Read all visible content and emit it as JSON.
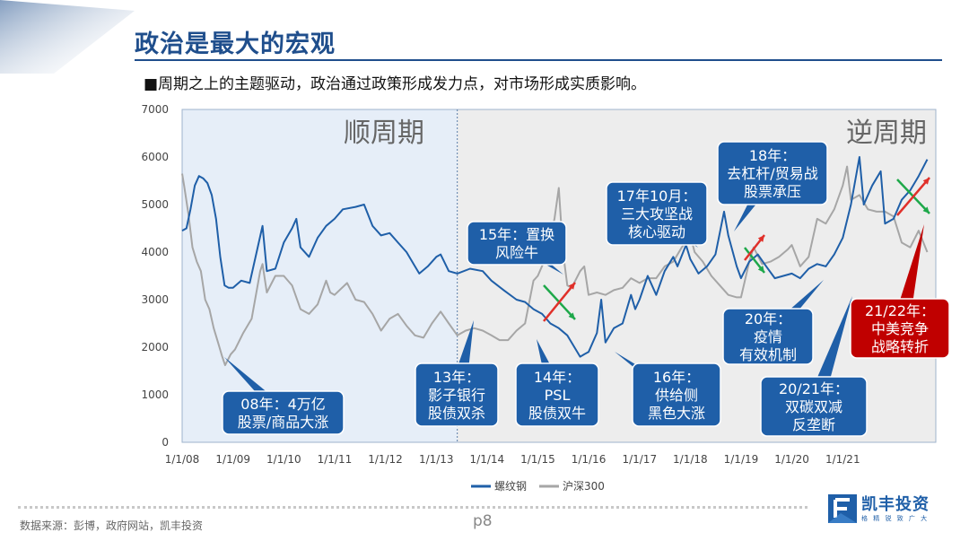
{
  "page": {
    "title": "政治是最大的宏观",
    "subtitle": "■周期之上的主题驱动，政治通过政策形成发力点，对市场形成实质影响。",
    "source": "数据来源：彭博，政府网站，凯丰投资",
    "page_number": "p8",
    "logo_name": "凯丰投资",
    "logo_slogan": "格 精 锐 致 广 大"
  },
  "colors": {
    "brand": "#1f4e8c",
    "series1": "#1f5fa8",
    "series2": "#a6a6a6",
    "alert": "#c00000",
    "callout": "#1f5fa8"
  },
  "chart_data": {
    "type": "line",
    "ylim": [
      0,
      7000
    ],
    "xlim": [
      "2008-01-01",
      "2022-11-01"
    ],
    "yticks": [
      "0",
      "1000",
      "2000",
      "3000",
      "4000",
      "5000",
      "6000",
      "7000"
    ],
    "xticks": [
      "1/1/08",
      "1/1/09",
      "1/1/10",
      "1/1/11",
      "1/1/12",
      "1/1/13",
      "1/1/14",
      "1/1/15",
      "1/1/16",
      "1/1/17",
      "1/1/18",
      "1/1/19",
      "1/1/20",
      "1/1/21"
    ],
    "regions": [
      {
        "label": "顺周期",
        "from": "2008-01-01",
        "to": "2013-06-01"
      },
      {
        "label": "逆周期",
        "from": "2013-06-01",
        "to": "2022-11-01"
      }
    ],
    "legend": "bottom",
    "series": [
      {
        "name": "螺纹钢",
        "points": [
          [
            "2008-01-01",
            4450
          ],
          [
            "2008-02-01",
            4500
          ],
          [
            "2008-03-01",
            4900
          ],
          [
            "2008-04-01",
            5400
          ],
          [
            "2008-05-01",
            5600
          ],
          [
            "2008-06-01",
            5550
          ],
          [
            "2008-07-01",
            5450
          ],
          [
            "2008-08-01",
            5200
          ],
          [
            "2008-09-01",
            4700
          ],
          [
            "2008-10-01",
            3900
          ],
          [
            "2008-11-01",
            3300
          ],
          [
            "2008-12-01",
            3250
          ],
          [
            "2009-01-01",
            3250
          ],
          [
            "2009-03-01",
            3400
          ],
          [
            "2009-05-01",
            3350
          ],
          [
            "2009-07-01",
            4150
          ],
          [
            "2009-08-01",
            4550
          ],
          [
            "2009-09-01",
            3600
          ],
          [
            "2009-11-01",
            3650
          ],
          [
            "2010-01-01",
            4200
          ],
          [
            "2010-03-01",
            4500
          ],
          [
            "2010-04-01",
            4700
          ],
          [
            "2010-05-01",
            4100
          ],
          [
            "2010-07-01",
            3900
          ],
          [
            "2010-09-01",
            4300
          ],
          [
            "2010-11-01",
            4550
          ],
          [
            "2011-01-01",
            4700
          ],
          [
            "2011-03-01",
            4900
          ],
          [
            "2011-06-01",
            4950
          ],
          [
            "2011-08-01",
            5000
          ],
          [
            "2011-10-01",
            4550
          ],
          [
            "2011-12-01",
            4350
          ],
          [
            "2012-02-01",
            4400
          ],
          [
            "2012-04-01",
            4200
          ],
          [
            "2012-06-01",
            4000
          ],
          [
            "2012-08-01",
            3700
          ],
          [
            "2012-09-01",
            3550
          ],
          [
            "2012-11-01",
            3700
          ],
          [
            "2013-01-01",
            3900
          ],
          [
            "2013-02-01",
            3950
          ],
          [
            "2013-04-01",
            3600
          ],
          [
            "2013-06-01",
            3550
          ],
          [
            "2013-09-01",
            3650
          ],
          [
            "2013-12-01",
            3600
          ],
          [
            "2014-02-01",
            3400
          ],
          [
            "2014-05-01",
            3200
          ],
          [
            "2014-08-01",
            3000
          ],
          [
            "2014-10-01",
            2950
          ],
          [
            "2014-12-01",
            2800
          ],
          [
            "2015-02-01",
            2700
          ],
          [
            "2015-04-01",
            2500
          ],
          [
            "2015-06-01",
            2400
          ],
          [
            "2015-08-01",
            2250
          ],
          [
            "2015-10-01",
            1950
          ],
          [
            "2015-11-01",
            1800
          ],
          [
            "2015-12-01",
            1850
          ],
          [
            "2016-01-01",
            1900
          ],
          [
            "2016-03-01",
            2300
          ],
          [
            "2016-04-01",
            3000
          ],
          [
            "2016-05-01",
            2100
          ],
          [
            "2016-07-01",
            2400
          ],
          [
            "2016-09-01",
            2500
          ],
          [
            "2016-11-01",
            3100
          ],
          [
            "2016-12-01",
            2800
          ],
          [
            "2017-01-01",
            3000
          ],
          [
            "2017-03-01",
            3500
          ],
          [
            "2017-05-01",
            3100
          ],
          [
            "2017-07-01",
            3600
          ],
          [
            "2017-09-01",
            3900
          ],
          [
            "2017-10-01",
            3700
          ],
          [
            "2017-12-01",
            4150
          ],
          [
            "2018-01-01",
            3850
          ],
          [
            "2018-03-01",
            3550
          ],
          [
            "2018-05-01",
            3700
          ],
          [
            "2018-07-01",
            3950
          ],
          [
            "2018-08-01",
            4400
          ],
          [
            "2018-09-01",
            4850
          ],
          [
            "2018-10-01",
            4350
          ],
          [
            "2018-12-01",
            3700
          ],
          [
            "2019-01-01",
            3450
          ],
          [
            "2019-03-01",
            3800
          ],
          [
            "2019-05-01",
            3950
          ],
          [
            "2019-07-01",
            3700
          ],
          [
            "2019-09-01",
            3450
          ],
          [
            "2019-11-01",
            3500
          ],
          [
            "2020-01-01",
            3550
          ],
          [
            "2020-03-01",
            3450
          ],
          [
            "2020-05-01",
            3650
          ],
          [
            "2020-07-01",
            3750
          ],
          [
            "2020-09-01",
            3700
          ],
          [
            "2020-11-01",
            3950
          ],
          [
            "2021-01-01",
            4300
          ],
          [
            "2021-03-01",
            5000
          ],
          [
            "2021-05-01",
            6000
          ],
          [
            "2021-06-01",
            5000
          ],
          [
            "2021-08-01",
            5400
          ],
          [
            "2021-10-01",
            5700
          ],
          [
            "2021-11-01",
            4600
          ],
          [
            "2022-01-01",
            4700
          ],
          [
            "2022-03-01",
            5100
          ],
          [
            "2022-05-01",
            5300
          ],
          [
            "2022-07-01",
            5600
          ],
          [
            "2022-09-01",
            5950
          ]
        ]
      },
      {
        "name": "沪深300",
        "points": [
          [
            "2008-01-01",
            5650
          ],
          [
            "2008-01-15",
            5400
          ],
          [
            "2008-02-15",
            4800
          ],
          [
            "2008-03-15",
            4100
          ],
          [
            "2008-04-15",
            3800
          ],
          [
            "2008-05-15",
            3600
          ],
          [
            "2008-06-15",
            3000
          ],
          [
            "2008-07-15",
            2800
          ],
          [
            "2008-08-15",
            2400
          ],
          [
            "2008-09-15",
            2100
          ],
          [
            "2008-10-15",
            1800
          ],
          [
            "2008-11-05",
            1620
          ],
          [
            "2008-12-15",
            1850
          ],
          [
            "2009-01-15",
            1950
          ],
          [
            "2009-03-15",
            2300
          ],
          [
            "2009-05-15",
            2600
          ],
          [
            "2009-07-15",
            3600
          ],
          [
            "2009-08-01",
            3750
          ],
          [
            "2009-09-01",
            3150
          ],
          [
            "2009-11-01",
            3500
          ],
          [
            "2010-01-01",
            3500
          ],
          [
            "2010-03-01",
            3300
          ],
          [
            "2010-05-01",
            2800
          ],
          [
            "2010-07-01",
            2700
          ],
          [
            "2010-09-01",
            2900
          ],
          [
            "2010-11-01",
            3400
          ],
          [
            "2010-12-01",
            3150
          ],
          [
            "2011-01-01",
            3100
          ],
          [
            "2011-04-01",
            3350
          ],
          [
            "2011-06-01",
            3000
          ],
          [
            "2011-08-01",
            2950
          ],
          [
            "2011-10-01",
            2700
          ],
          [
            "2011-12-01",
            2350
          ],
          [
            "2012-02-01",
            2600
          ],
          [
            "2012-04-01",
            2700
          ],
          [
            "2012-06-01",
            2450
          ],
          [
            "2012-08-01",
            2250
          ],
          [
            "2012-10-01",
            2200
          ],
          [
            "2012-12-01",
            2500
          ],
          [
            "2013-02-01",
            2750
          ],
          [
            "2013-04-01",
            2500
          ],
          [
            "2013-06-01",
            2250
          ],
          [
            "2013-08-01",
            2350
          ],
          [
            "2013-10-01",
            2400
          ],
          [
            "2013-12-01",
            2350
          ],
          [
            "2014-02-01",
            2250
          ],
          [
            "2014-04-01",
            2150
          ],
          [
            "2014-06-01",
            2150
          ],
          [
            "2014-08-01",
            2350
          ],
          [
            "2014-10-01",
            2500
          ],
          [
            "2014-12-01",
            3400
          ],
          [
            "2015-01-01",
            3500
          ],
          [
            "2015-03-01",
            3900
          ],
          [
            "2015-05-01",
            4700
          ],
          [
            "2015-06-01",
            5350
          ],
          [
            "2015-07-01",
            4000
          ],
          [
            "2015-08-01",
            3300
          ],
          [
            "2015-09-01",
            3250
          ],
          [
            "2015-11-01",
            3600
          ],
          [
            "2015-12-01",
            3700
          ],
          [
            "2016-01-01",
            3100
          ],
          [
            "2016-03-01",
            3150
          ],
          [
            "2016-05-01",
            3100
          ],
          [
            "2016-07-01",
            3200
          ],
          [
            "2016-09-01",
            3250
          ],
          [
            "2016-11-01",
            3450
          ],
          [
            "2017-01-01",
            3350
          ],
          [
            "2017-03-01",
            3450
          ],
          [
            "2017-05-01",
            3450
          ],
          [
            "2017-07-01",
            3700
          ],
          [
            "2017-09-01",
            3800
          ],
          [
            "2017-11-01",
            4100
          ],
          [
            "2018-01-01",
            4350
          ],
          [
            "2018-02-01",
            4000
          ],
          [
            "2018-04-01",
            3800
          ],
          [
            "2018-06-01",
            3500
          ],
          [
            "2018-08-01",
            3300
          ],
          [
            "2018-10-01",
            3100
          ],
          [
            "2018-12-01",
            3050
          ],
          [
            "2019-01-01",
            3050
          ],
          [
            "2019-03-01",
            3800
          ],
          [
            "2019-04-01",
            4100
          ],
          [
            "2019-06-01",
            3750
          ],
          [
            "2019-08-01",
            3800
          ],
          [
            "2019-10-01",
            3900
          ],
          [
            "2019-12-01",
            4050
          ],
          [
            "2020-01-01",
            4150
          ],
          [
            "2020-03-01",
            3700
          ],
          [
            "2020-05-01",
            3900
          ],
          [
            "2020-07-01",
            4700
          ],
          [
            "2020-09-01",
            4600
          ],
          [
            "2020-11-01",
            4900
          ],
          [
            "2021-01-01",
            5400
          ],
          [
            "2021-02-01",
            5800
          ],
          [
            "2021-03-01",
            5100
          ],
          [
            "2021-05-01",
            5200
          ],
          [
            "2021-07-01",
            4900
          ],
          [
            "2021-09-01",
            4850
          ],
          [
            "2021-11-01",
            4850
          ],
          [
            "2022-01-01",
            4750
          ],
          [
            "2022-03-01",
            4200
          ],
          [
            "2022-05-01",
            4100
          ],
          [
            "2022-07-01",
            4450
          ],
          [
            "2022-09-01",
            4000
          ]
        ]
      }
    ],
    "annotations": [
      {
        "lines": [
          "08年：4万亿",
          "股票/商品大涨"
        ],
        "style": "blue"
      },
      {
        "lines": [
          "13年：",
          "影子银行",
          "股债双杀"
        ],
        "style": "blue"
      },
      {
        "lines": [
          "14年：",
          "PSL",
          "股债双牛"
        ],
        "style": "blue"
      },
      {
        "lines": [
          "15年：置换",
          "风险牛"
        ],
        "style": "blue"
      },
      {
        "lines": [
          "16年：",
          "供给侧",
          "黑色大涨"
        ],
        "style": "blue"
      },
      {
        "lines": [
          "17年10月：",
          "三大攻坚战",
          "核心驱动"
        ],
        "style": "blue"
      },
      {
        "lines": [
          "18年：",
          "去杠杆/贸易战",
          "股票承压"
        ],
        "style": "blue"
      },
      {
        "lines": [
          "20年：",
          "疫情",
          "有效机制"
        ],
        "style": "blue"
      },
      {
        "lines": [
          "20/21年：",
          "双碳双减",
          "反垄断"
        ],
        "style": "blue"
      },
      {
        "lines": [
          "21/22年：",
          "中美竞争",
          "战略转折"
        ],
        "style": "red"
      }
    ]
  }
}
